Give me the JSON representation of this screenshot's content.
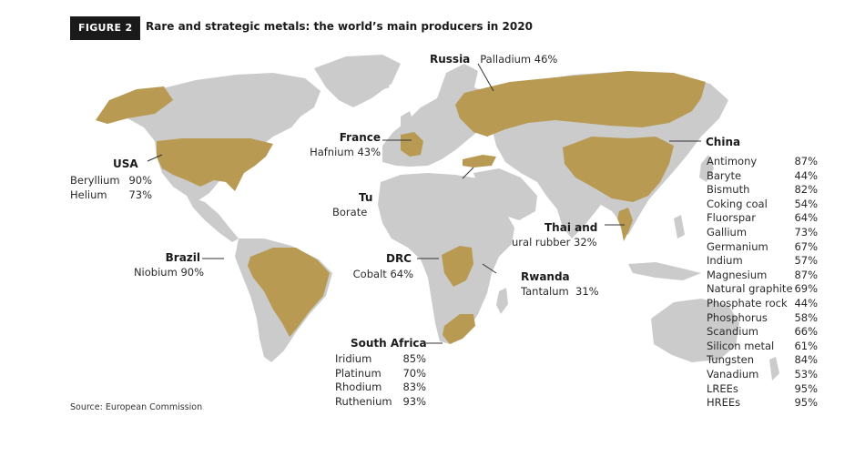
{
  "figure": {
    "tag": "FIGURE 2",
    "title": "Rare and strategic metals: the world’s main producers in 2020"
  },
  "source": "Source: European Commission",
  "colors": {
    "land": "#cbcbcb",
    "highlight": "#b89a53",
    "tag_bg": "#1a1a1a"
  },
  "map_data": {
    "type": "world-map-choropleth",
    "highlighted_countries": [
      "USA",
      "Brazil",
      "France",
      "Turkey",
      "Russia",
      "China",
      "Thailand",
      "DRC",
      "Rwanda",
      "South Africa"
    ],
    "producers": {
      "russia": {
        "name": "Russia",
        "items": [
          {
            "metal": "Palladium",
            "share": "46%"
          }
        ]
      },
      "france": {
        "name": "France",
        "items": [
          {
            "metal": "Hafnium",
            "share": "43%"
          }
        ]
      },
      "usa": {
        "name": "USA",
        "items": [
          {
            "metal": "Beryllium",
            "share": "90%"
          },
          {
            "metal": "Helium",
            "share": "73%"
          }
        ]
      },
      "turkey": {
        "name": "Tu",
        "items": [
          {
            "metal": "Borate",
            "share": ""
          }
        ]
      },
      "brazil": {
        "name": "Brazil",
        "items": [
          {
            "metal": "Niobium",
            "share": "90%"
          }
        ]
      },
      "drc": {
        "name": "DRC",
        "items": [
          {
            "metal": "Cobalt",
            "share": "64%"
          }
        ]
      },
      "thailand": {
        "name": "Thai and",
        "items": [
          {
            "metal": "ural rubber",
            "share": "32%"
          }
        ]
      },
      "rwanda": {
        "name": "Rwanda",
        "items": [
          {
            "metal": "Tantalum",
            "share": "31%"
          }
        ]
      },
      "south_africa": {
        "name": "South Africa",
        "items": [
          {
            "metal": "Iridium",
            "share": "85%"
          },
          {
            "metal": "Platinum",
            "share": "70%"
          },
          {
            "metal": "Rhodium",
            "share": "83%"
          },
          {
            "metal": "Ruthenium",
            "share": "93%"
          }
        ]
      },
      "china": {
        "name": "China",
        "items": [
          {
            "metal": "Antimony",
            "share": "87%"
          },
          {
            "metal": "Baryte",
            "share": "44%"
          },
          {
            "metal": "Bismuth",
            "share": "82%"
          },
          {
            "metal": "Coking coal",
            "share": "54%"
          },
          {
            "metal": "Fluorspar",
            "share": "64%"
          },
          {
            "metal": "Gallium",
            "share": "73%"
          },
          {
            "metal": "Germanium",
            "share": "67%"
          },
          {
            "metal": "Indium",
            "share": "57%"
          },
          {
            "metal": "Magnesium",
            "share": "87%"
          },
          {
            "metal": "Natural graphite",
            "share": "69%"
          },
          {
            "metal": "Phosphate rock",
            "share": "44%"
          },
          {
            "metal": "Phosphorus",
            "share": "58%"
          },
          {
            "metal": "Scandium",
            "share": "66%"
          },
          {
            "metal": "Silicon metal",
            "share": "61%"
          },
          {
            "metal": "Tungsten",
            "share": "84%"
          },
          {
            "metal": "Vanadium",
            "share": "53%"
          },
          {
            "metal": "LREEs",
            "share": "95%"
          },
          {
            "metal": "HREEs",
            "share": "95%"
          }
        ]
      }
    }
  }
}
